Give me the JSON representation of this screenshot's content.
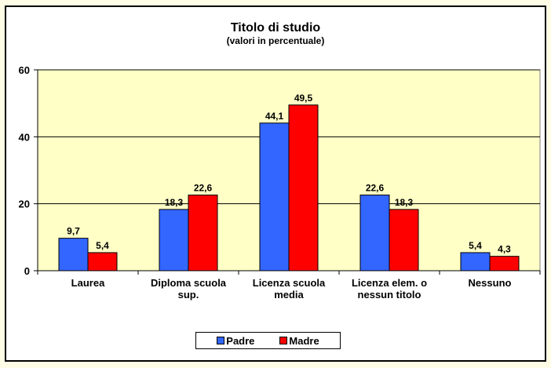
{
  "chart_data": {
    "type": "bar",
    "title": "Titolo di studio",
    "subtitle": "(valori in percentuale)",
    "xlabel": "",
    "ylabel": "",
    "ylim": [
      0,
      60
    ],
    "yticks": [
      0,
      20,
      40,
      60
    ],
    "grid": true,
    "legend_position": "bottom",
    "categories": [
      [
        "Laurea"
      ],
      [
        "Diploma scuola",
        "sup."
      ],
      [
        "Licenza scuola",
        "media"
      ],
      [
        "Licenza elem. o",
        "nessun titolo"
      ],
      [
        "Nessuno"
      ]
    ],
    "series": [
      {
        "name": "Padre",
        "color": "#3366ff",
        "values": [
          9.7,
          18.3,
          44.1,
          22.6,
          5.4
        ],
        "labels": [
          "9,7",
          "18,3",
          "44,1",
          "22,6",
          "5,4"
        ]
      },
      {
        "name": "Madre",
        "color": "#ff0000",
        "values": [
          5.4,
          22.6,
          49.5,
          18.3,
          4.3
        ],
        "labels": [
          "5,4",
          "22,6",
          "49,5",
          "18,3",
          "4,3"
        ]
      }
    ]
  },
  "colors": {
    "page_bg": "#fffde6",
    "plot_bg": "#ffffc6",
    "frame_bg": "#ffffff"
  }
}
